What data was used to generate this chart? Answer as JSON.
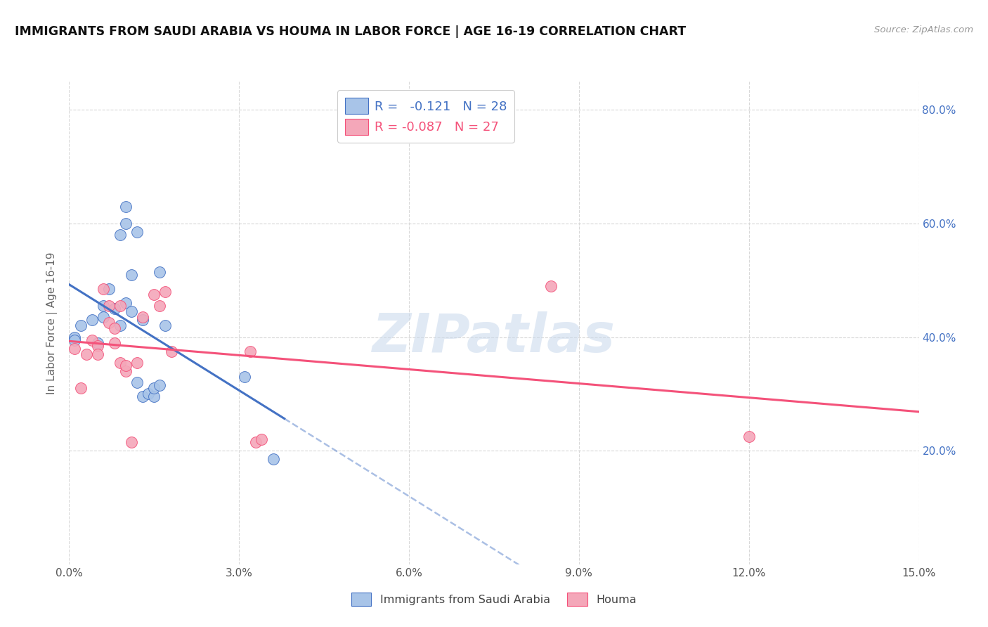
{
  "title": "IMMIGRANTS FROM SAUDI ARABIA VS HOUMA IN LABOR FORCE | AGE 16-19 CORRELATION CHART",
  "source": "Source: ZipAtlas.com",
  "ylabel_label": "In Labor Force | Age 16-19",
  "xlim": [
    0.0,
    0.15
  ],
  "ylim": [
    0.0,
    0.85
  ],
  "xtick_labels": [
    "0.0%",
    "3.0%",
    "6.0%",
    "9.0%",
    "12.0%",
    "15.0%"
  ],
  "xtick_values": [
    0.0,
    0.03,
    0.06,
    0.09,
    0.12,
    0.15
  ],
  "ytick_values": [
    0.2,
    0.4,
    0.6,
    0.8
  ],
  "right_ytick_labels": [
    "20.0%",
    "40.0%",
    "60.0%",
    "80.0%"
  ],
  "blue_R": "-0.121",
  "blue_N": "28",
  "pink_R": "-0.087",
  "pink_N": "27",
  "blue_color": "#a8c4e8",
  "pink_color": "#f4a7b9",
  "blue_line_color": "#4472c4",
  "pink_line_color": "#f4527a",
  "blue_scatter": [
    [
      0.001,
      0.4
    ],
    [
      0.002,
      0.42
    ],
    [
      0.004,
      0.43
    ],
    [
      0.005,
      0.39
    ],
    [
      0.006,
      0.435
    ],
    [
      0.006,
      0.455
    ],
    [
      0.007,
      0.485
    ],
    [
      0.008,
      0.45
    ],
    [
      0.009,
      0.42
    ],
    [
      0.009,
      0.58
    ],
    [
      0.01,
      0.6
    ],
    [
      0.01,
      0.63
    ],
    [
      0.01,
      0.46
    ],
    [
      0.011,
      0.51
    ],
    [
      0.011,
      0.445
    ],
    [
      0.012,
      0.585
    ],
    [
      0.012,
      0.32
    ],
    [
      0.013,
      0.295
    ],
    [
      0.013,
      0.43
    ],
    [
      0.014,
      0.3
    ],
    [
      0.015,
      0.295
    ],
    [
      0.015,
      0.31
    ],
    [
      0.016,
      0.315
    ],
    [
      0.016,
      0.515
    ],
    [
      0.017,
      0.42
    ],
    [
      0.031,
      0.33
    ],
    [
      0.036,
      0.185
    ],
    [
      0.001,
      0.395
    ]
  ],
  "pink_scatter": [
    [
      0.001,
      0.38
    ],
    [
      0.002,
      0.31
    ],
    [
      0.003,
      0.37
    ],
    [
      0.004,
      0.395
    ],
    [
      0.005,
      0.385
    ],
    [
      0.005,
      0.37
    ],
    [
      0.006,
      0.485
    ],
    [
      0.007,
      0.455
    ],
    [
      0.007,
      0.425
    ],
    [
      0.008,
      0.39
    ],
    [
      0.008,
      0.415
    ],
    [
      0.009,
      0.455
    ],
    [
      0.009,
      0.355
    ],
    [
      0.01,
      0.34
    ],
    [
      0.01,
      0.35
    ],
    [
      0.011,
      0.215
    ],
    [
      0.012,
      0.355
    ],
    [
      0.013,
      0.435
    ],
    [
      0.015,
      0.475
    ],
    [
      0.016,
      0.455
    ],
    [
      0.017,
      0.48
    ],
    [
      0.018,
      0.375
    ],
    [
      0.032,
      0.375
    ],
    [
      0.033,
      0.215
    ],
    [
      0.034,
      0.22
    ],
    [
      0.085,
      0.49
    ],
    [
      0.12,
      0.225
    ]
  ],
  "watermark": "ZIPatlas",
  "background_color": "#ffffff",
  "grid_color": "#d8d8d8",
  "legend_bottom_labels": [
    "Immigrants from Saudi Arabia",
    "Houma"
  ]
}
